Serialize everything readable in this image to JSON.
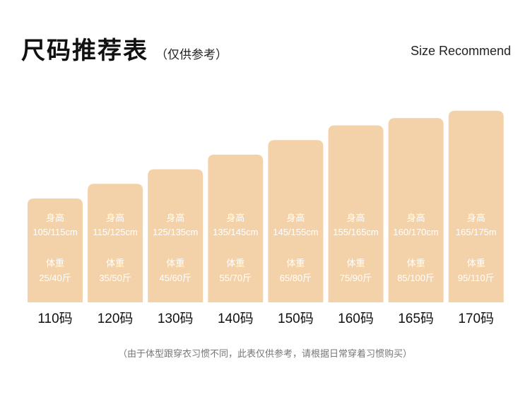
{
  "header": {
    "title": "尺码推荐表",
    "subtitle": "（仅供参考）",
    "en_title": "Size Recommend"
  },
  "note": "（由于体型跟穿衣习惯不同，此表仅供参考，请根据日常穿着习惯购买）",
  "colors": {
    "bar": "#f4d2a9",
    "bar_text": "#ffffff",
    "label": "#111111"
  },
  "chart_data": {
    "type": "bar",
    "height_label": "身高",
    "weight_label": "体重",
    "categories": [
      "110码",
      "120码",
      "130码",
      "140码",
      "150码",
      "160码",
      "165码",
      "170码"
    ],
    "heights": [
      "105/115cm",
      "115/125cm",
      "125/135cm",
      "135/145cm",
      "145/155cm",
      "155/165cm",
      "160/170cm",
      "165/175m"
    ],
    "weights": [
      "25/40斤",
      "35/50斤",
      "45/60斤",
      "55/70斤",
      "65/80斤",
      "75/90斤",
      "85/100斤",
      "95/110斤"
    ],
    "values": [
      110,
      120,
      130,
      140,
      150,
      160,
      165,
      170
    ]
  }
}
